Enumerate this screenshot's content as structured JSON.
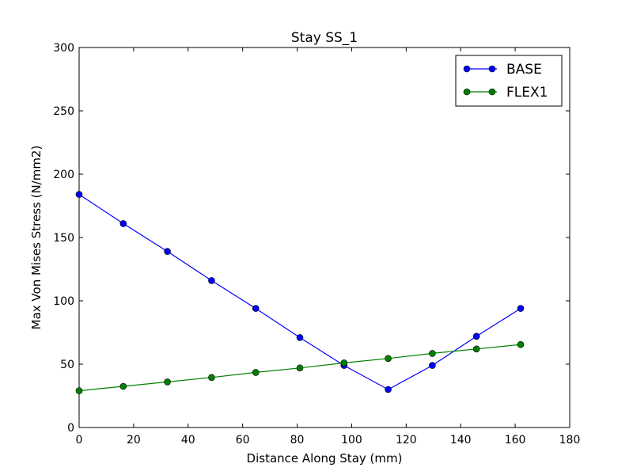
{
  "chart_data": {
    "type": "line",
    "title": "Stay SS_1",
    "xlabel": "Distance Along Stay (mm)",
    "ylabel": "Max Von Mises Stress (N/mm2)",
    "xlim": [
      0,
      180
    ],
    "ylim": [
      0,
      300
    ],
    "x_ticks": [
      0,
      20,
      40,
      60,
      80,
      100,
      120,
      140,
      160,
      180
    ],
    "y_ticks": [
      0,
      50,
      100,
      150,
      200,
      250,
      300
    ],
    "grid": false,
    "legend_position": "top-right",
    "series": [
      {
        "name": "BASE",
        "color": "#0000ff",
        "marker": "circle",
        "x": [
          0,
          16.2,
          32.4,
          48.6,
          64.8,
          81.0,
          97.2,
          113.4,
          129.6,
          145.8,
          162.0
        ],
        "y": [
          184,
          161,
          139,
          116,
          94,
          71,
          49,
          30,
          49,
          72,
          94
        ]
      },
      {
        "name": "FLEX1",
        "color": "#008000",
        "marker": "circle",
        "x": [
          0,
          16.2,
          32.4,
          48.6,
          64.8,
          81.0,
          97.2,
          113.4,
          129.6,
          145.8,
          162.0
        ],
        "y": [
          29,
          32.5,
          36,
          39.5,
          43.5,
          47,
          51,
          54.5,
          58.5,
          62,
          65.5
        ]
      }
    ]
  }
}
